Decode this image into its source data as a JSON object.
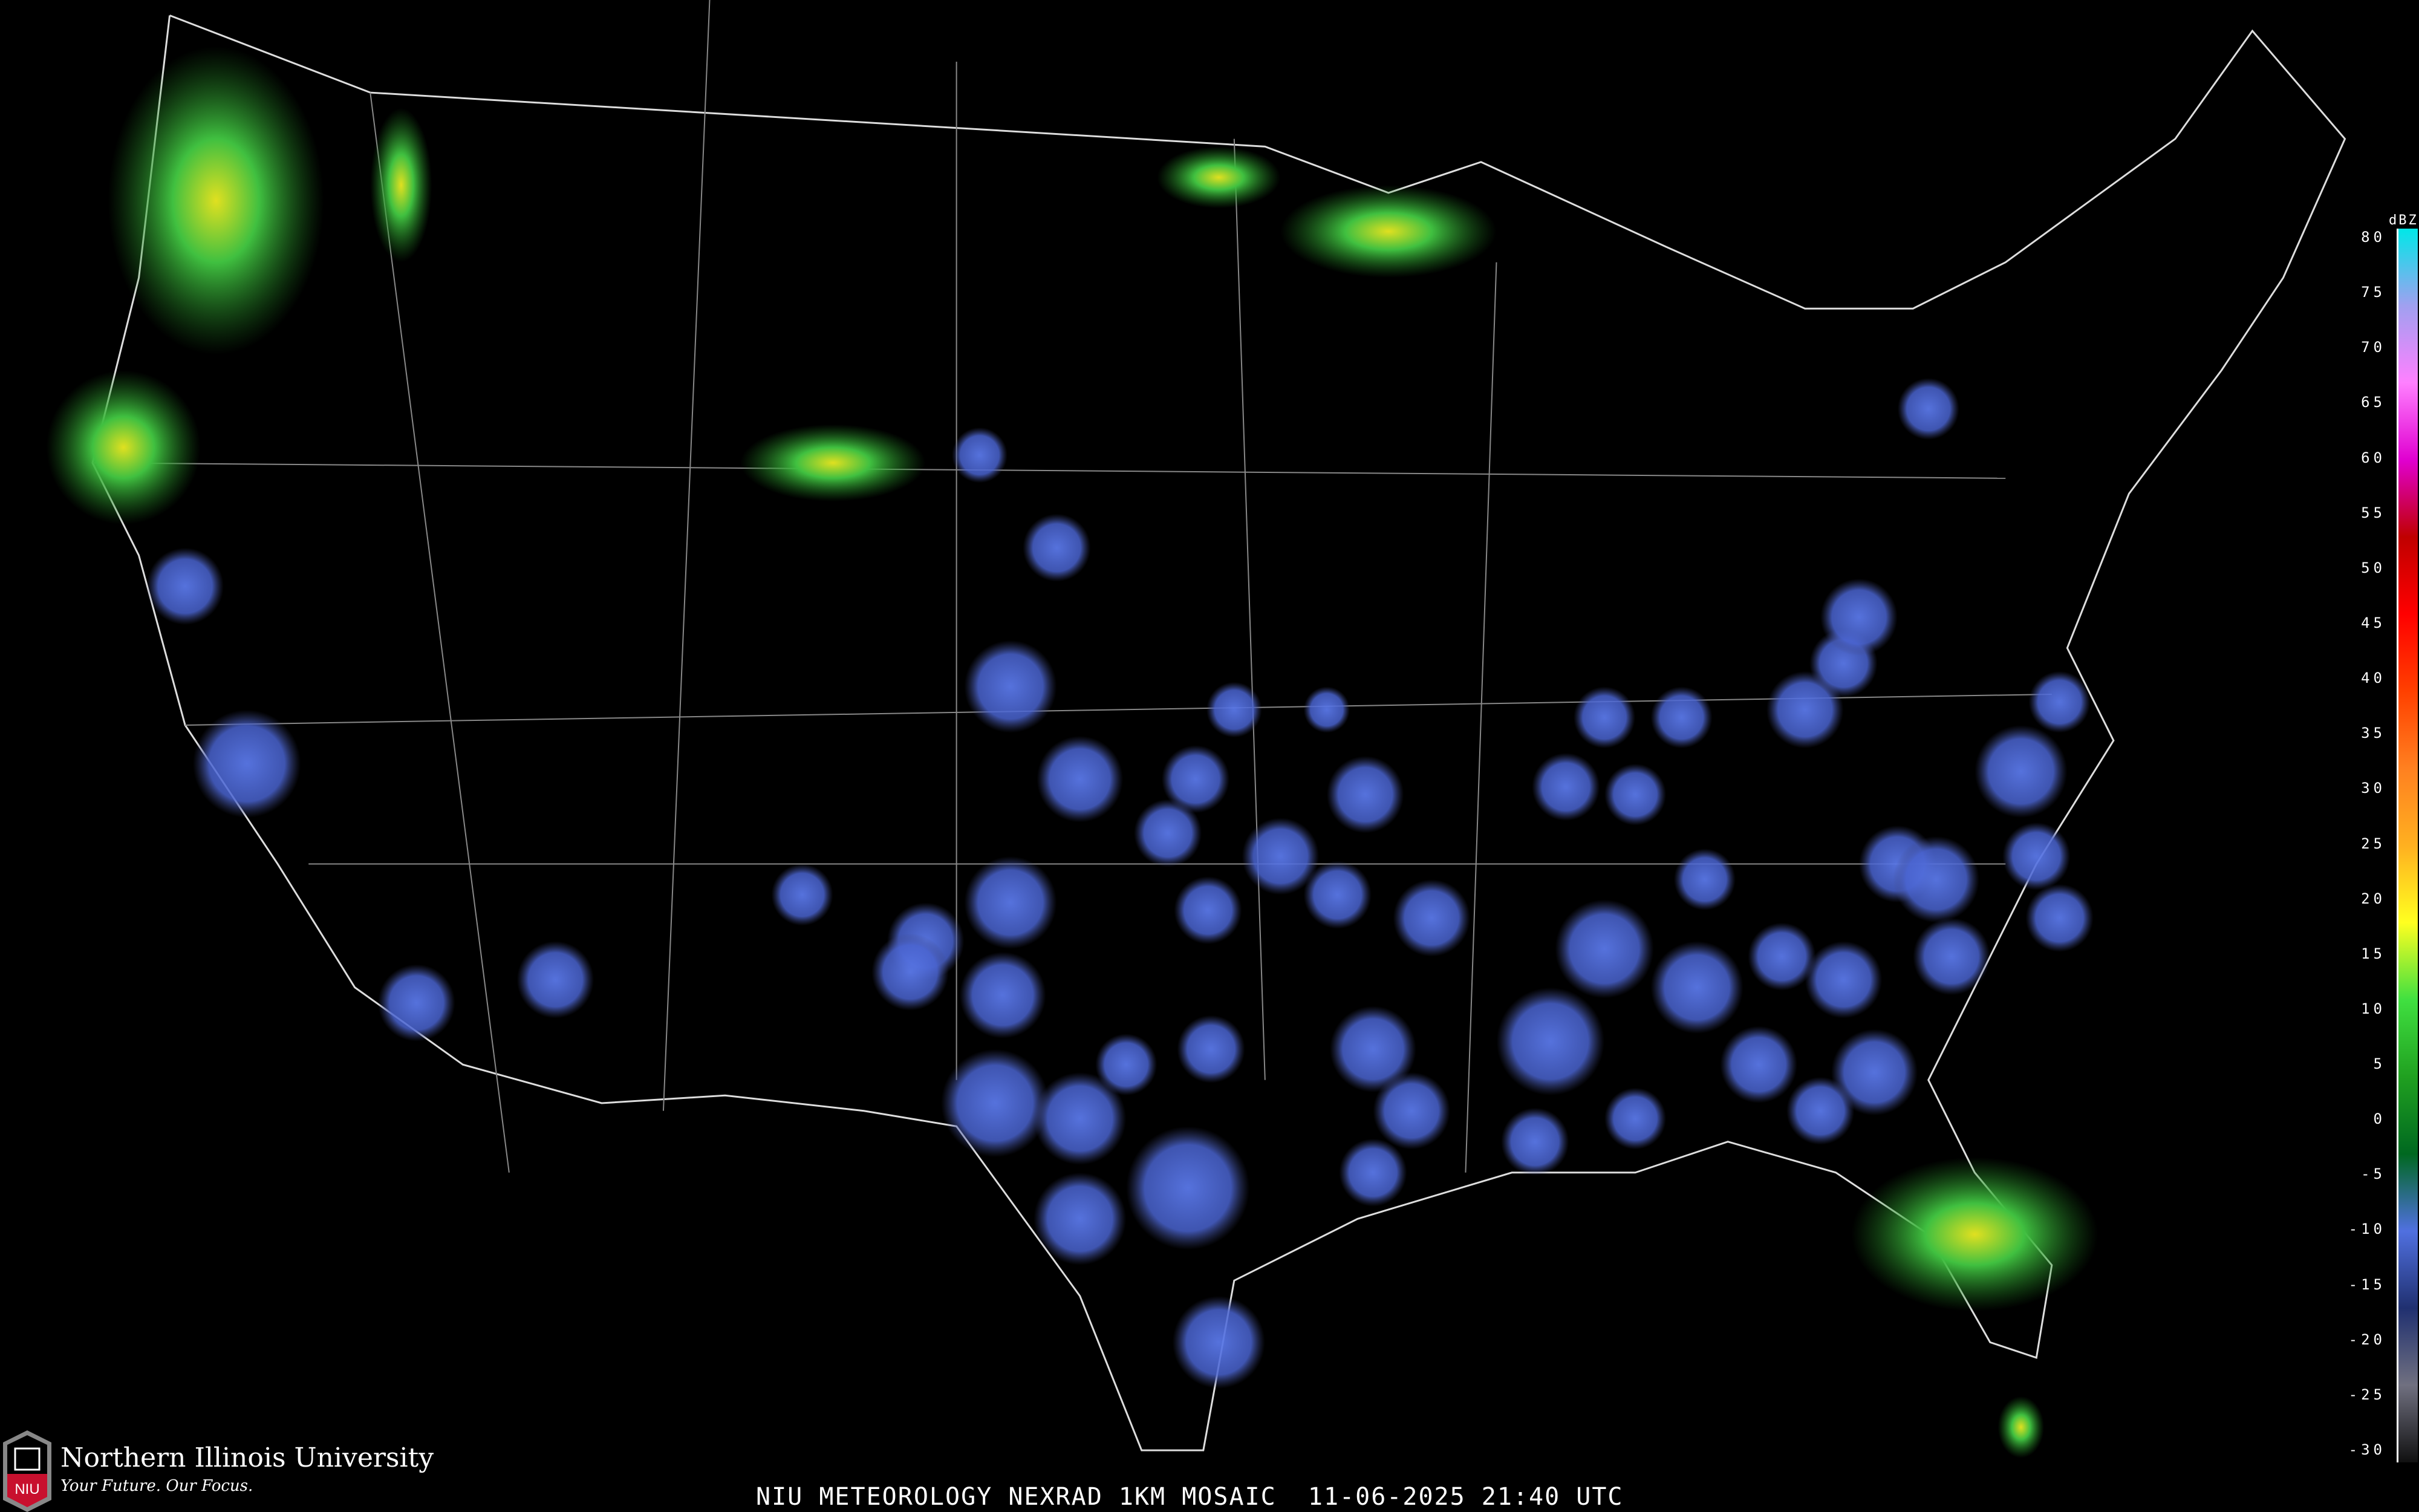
{
  "caption": "NIU METEOROLOGY NEXRAD 1KM MOSAIC  11-06-2025 21:40 UTC",
  "branding": {
    "university": "Northern Illinois University",
    "tagline": "Your Future. Our Focus.",
    "logo_text": "NIU",
    "logo_color": "#c8102e"
  },
  "legend": {
    "title": "dBZ",
    "labels": [
      "80",
      "75",
      "70",
      "65",
      "60",
      "55",
      "50",
      "45",
      "40",
      "35",
      "30",
      "25",
      "20",
      "15",
      "10",
      "5",
      "0",
      "-5",
      "-10",
      "-15",
      "-20",
      "-25",
      "-30"
    ],
    "colors": [
      "#00e8e8",
      "#a0a0f0",
      "#ff80ff",
      "#e000d0",
      "#c00000",
      "#ff0000",
      "#ff4000",
      "#ff8020",
      "#ffb020",
      "#ffff20",
      "#40e040",
      "#20a020",
      "#006820",
      "#5070e0",
      "#203070",
      "#707080",
      "#101010"
    ]
  }
}
